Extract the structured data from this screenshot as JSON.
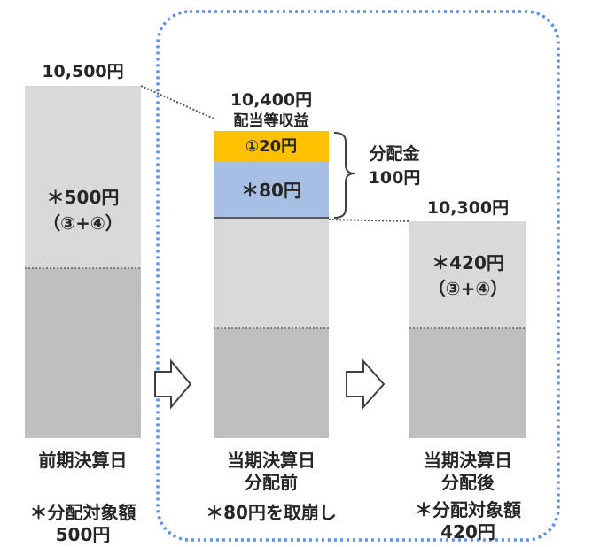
{
  "colors": {
    "bar_light": "#d9d9d9",
    "bar_dark": "#bfbfbf",
    "income_yellow": "#ffc000",
    "reserve_blue": "#a6bfe3",
    "dotted_border": "#5b8ff0"
  },
  "bars": {
    "prev": {
      "top_label": "10,500円",
      "upper_line1": "＊500円",
      "upper_line2": "（③+④）",
      "bottom_label": "前期決算日",
      "note_line1": "＊分配対象額",
      "note_line2": "500円"
    },
    "before": {
      "top_label": "10,400円",
      "income_caption": "配当等収益",
      "income_value": "①20円",
      "reserve_value": "＊80円",
      "bottom_line1": "当期決算日",
      "bottom_line2": "分配前",
      "note": "＊80円を取崩し"
    },
    "after": {
      "top_label": "10,300円",
      "upper_line1": "＊420円",
      "upper_line2": "（③+④）",
      "bottom_line1": "当期決算日",
      "bottom_line2": "分配後",
      "note_line1": "＊分配対象額",
      "note_line2": "420円"
    }
  },
  "distribution": {
    "line1": "分配金",
    "line2": "100円"
  },
  "icons": [
    "arrow-right-icon",
    "arrow-right-icon",
    "curly-brace-icon"
  ]
}
